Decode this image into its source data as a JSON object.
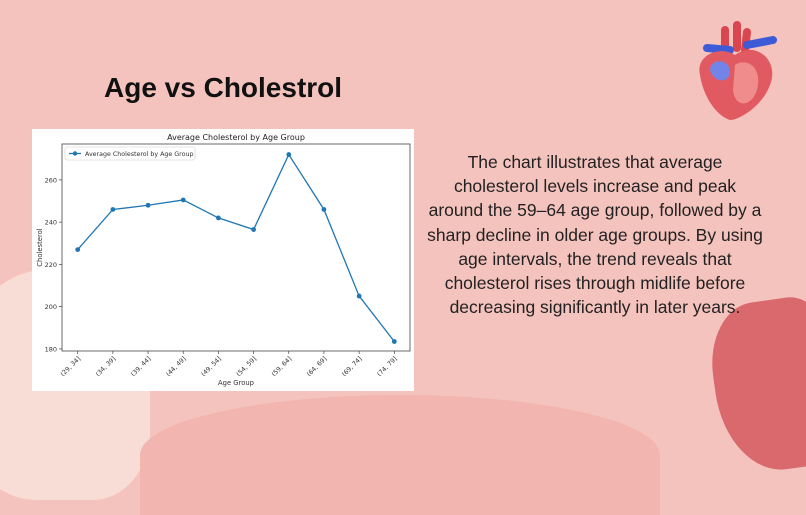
{
  "slide": {
    "title": "Age vs Cholestrol",
    "description": "The chart illustrates that average cholesterol levels increase and peak around the 59–64 age group, followed by a sharp decline in older age groups. By using age intervals, the trend reveals that cholesterol rises through midlife before decreasing significantly in later years.",
    "background_color": "#f5c3bd",
    "decoration_icon": "anatomical-heart-icon"
  },
  "chart_data": {
    "type": "line",
    "title": "Average Cholesterol by Age Group",
    "xlabel": "Age Group",
    "ylabel": "Cholesterol",
    "categories": [
      "(29, 34]",
      "(34, 39]",
      "(39, 44]",
      "(44, 49]",
      "(49, 54]",
      "(54, 59]",
      "(59, 64]",
      "(64, 69]",
      "(69, 74]",
      "(74, 79]"
    ],
    "series": [
      {
        "name": "Average Cholesterol by Age Group",
        "values": [
          227,
          246,
          248,
          250.5,
          242,
          236.5,
          272,
          246,
          205,
          183.5
        ],
        "color": "#1f77b4"
      }
    ],
    "yticks": [
      180,
      200,
      220,
      240,
      260
    ],
    "ylim": [
      179,
      277
    ],
    "grid": false,
    "legend": "top-left"
  }
}
